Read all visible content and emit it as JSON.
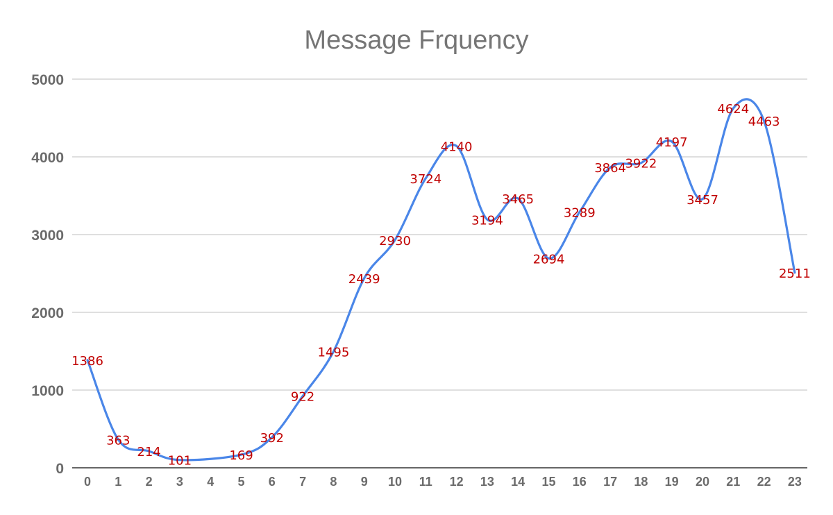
{
  "chart_data": {
    "type": "line",
    "title": "Message Frquency",
    "xlabel": "",
    "ylabel": "",
    "x": [
      "0",
      "1",
      "2",
      "3",
      "4",
      "5",
      "6",
      "7",
      "8",
      "9",
      "10",
      "11",
      "12",
      "13",
      "14",
      "15",
      "16",
      "17",
      "18",
      "19",
      "20",
      "21",
      "22",
      "23"
    ],
    "series": [
      {
        "values": [
          1386,
          363,
          214,
          101,
          null,
          169,
          392,
          922,
          1495,
          2439,
          2930,
          3724,
          4140,
          3194,
          3465,
          2694,
          3289,
          3864,
          3922,
          4197,
          3457,
          4624,
          4463,
          2511
        ]
      }
    ],
    "ylim": [
      0,
      5000
    ],
    "yticks": [
      "0",
      "1000",
      "2000",
      "3000",
      "4000",
      "5000"
    ],
    "grid": true,
    "data_labels": true,
    "smooth": true,
    "colors": {
      "line": "#4a86e8",
      "label": "#c00000",
      "grid": "#cccccc",
      "title": "#757575",
      "tick": "#6b6b6b"
    }
  }
}
